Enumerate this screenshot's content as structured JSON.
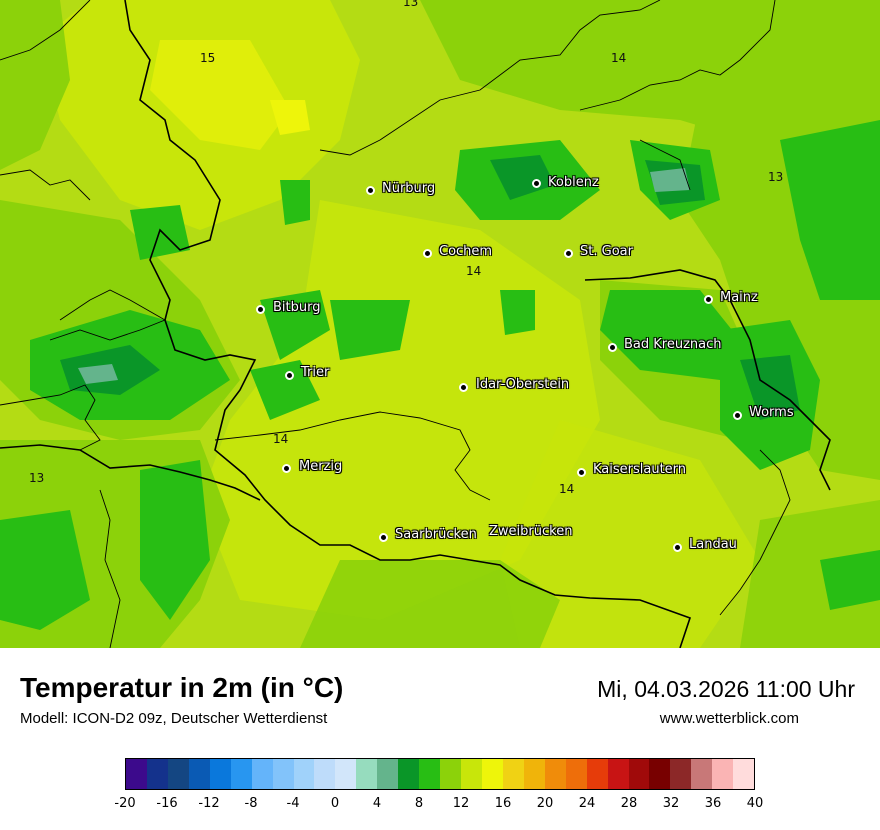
{
  "map": {
    "cities": [
      {
        "name": "Nürburg"
      },
      {
        "name": "Koblenz"
      },
      {
        "name": "Cochem"
      },
      {
        "name": "St. Goar"
      },
      {
        "name": "Mainz"
      },
      {
        "name": "Bitburg"
      },
      {
        "name": "Bad Kreuznach"
      },
      {
        "name": "Trier"
      },
      {
        "name": "Idar-Oberstein"
      },
      {
        "name": "Worms"
      },
      {
        "name": "Merzig"
      },
      {
        "name": "Kaiserslautern"
      },
      {
        "name": "Saarbrücken"
      },
      {
        "name": "Zweibrücken"
      },
      {
        "name": "Landau"
      }
    ],
    "isotherm_labels": [
      "13",
      "15",
      "14",
      "13",
      "14",
      "14",
      "13",
      "14"
    ]
  },
  "footer": {
    "title": "Temperatur in 2m (in °C)",
    "model": "Modell: ICON-D2 09z, Deutscher Wetterdienst",
    "datetime": "Mi, 04.03.2026 11:00 Uhr",
    "website": "www.wetterblick.com"
  },
  "legend": {
    "colors": [
      "#3c0a8c",
      "#14328c",
      "#144682",
      "#0a5ab4",
      "#0a78dc",
      "#2896f0",
      "#64b4fa",
      "#82c3fa",
      "#a0d2fa",
      "#bedcfa",
      "#d2e6fa",
      "#96dcbe",
      "#64b48c",
      "#0a9628",
      "#28be14",
      "#8cd20a",
      "#c8e60a",
      "#eef50a",
      "#f0d214",
      "#f0b40a",
      "#f08c0a",
      "#ee6e0a",
      "#e63c0a",
      "#c81414",
      "#a00a0a",
      "#780000",
      "#8c2828",
      "#c87878",
      "#fab4b4",
      "#ffdcdc"
    ],
    "ticks": [
      "-20",
      "-16",
      "-12",
      "-8",
      "-4",
      "0",
      "4",
      "8",
      "12",
      "16",
      "20",
      "24",
      "28",
      "32",
      "36",
      "40"
    ]
  }
}
